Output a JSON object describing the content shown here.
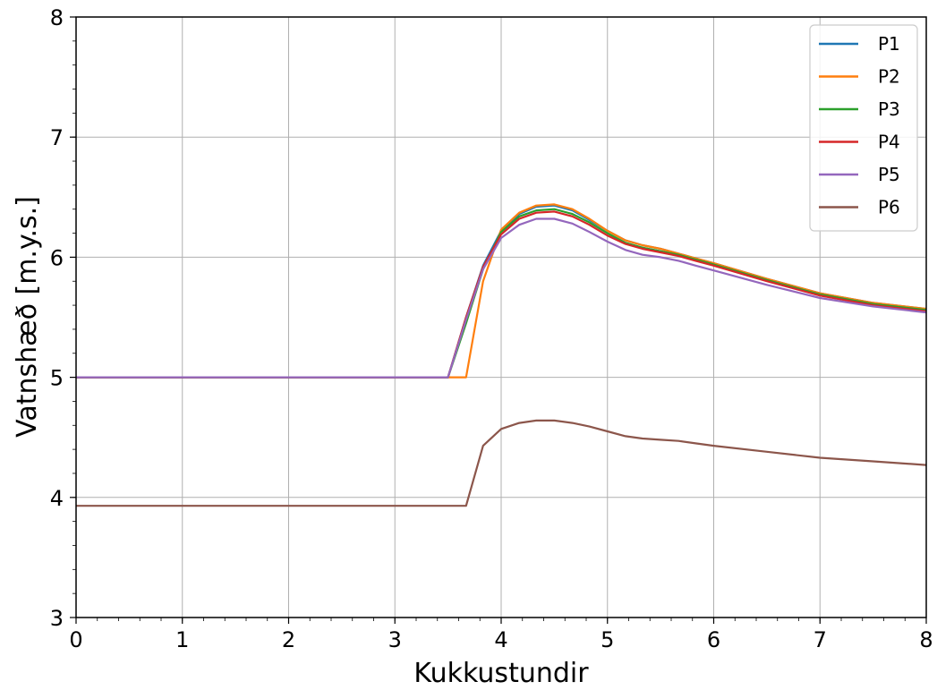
{
  "chart_data": {
    "type": "line",
    "title": "",
    "xlabel": "Kukkustundir",
    "ylabel": "Vatnshæð [m.y.s.]",
    "xlim": [
      0,
      8
    ],
    "ylim": [
      3,
      8
    ],
    "xticks": [
      0,
      1,
      2,
      3,
      4,
      5,
      6,
      7,
      8
    ],
    "yticks": [
      3,
      4,
      5,
      6,
      7,
      8
    ],
    "grid": true,
    "legend": "top-right",
    "series": [
      {
        "name": "P1",
        "color": "#1f77b4",
        "x": [
          0,
          3.5,
          3.67,
          3.83,
          4.0,
          4.17,
          4.33,
          4.5,
          4.67,
          4.83,
          5.0,
          5.17,
          5.33,
          5.5,
          5.67,
          5.83,
          6.0,
          6.5,
          7.0,
          7.5,
          8.0
        ],
        "y": [
          5.0,
          5.0,
          5.5,
          5.93,
          6.22,
          6.36,
          6.42,
          6.43,
          6.39,
          6.31,
          6.22,
          6.14,
          6.1,
          6.07,
          6.03,
          5.99,
          5.95,
          5.82,
          5.7,
          5.62,
          5.57
        ]
      },
      {
        "name": "P2",
        "color": "#ff7f0e",
        "x": [
          0,
          3.5,
          3.67,
          3.83,
          4.0,
          4.17,
          4.33,
          4.5,
          4.67,
          4.83,
          5.0,
          5.17,
          5.33,
          5.5,
          5.67,
          5.83,
          6.0,
          6.5,
          7.0,
          7.5,
          8.0
        ],
        "y": [
          5.0,
          5.0,
          5.0,
          5.8,
          6.23,
          6.37,
          6.43,
          6.44,
          6.4,
          6.32,
          6.22,
          6.14,
          6.1,
          6.07,
          6.03,
          5.99,
          5.95,
          5.82,
          5.7,
          5.62,
          5.57
        ]
      },
      {
        "name": "P3",
        "color": "#2ca02c",
        "x": [
          0,
          3.5,
          3.67,
          3.83,
          4.0,
          4.17,
          4.33,
          4.5,
          4.67,
          4.83,
          5.0,
          5.17,
          5.33,
          5.5,
          5.67,
          5.83,
          6.0,
          6.5,
          7.0,
          7.5,
          8.0
        ],
        "y": [
          5.0,
          5.0,
          5.45,
          5.9,
          6.21,
          6.34,
          6.39,
          6.4,
          6.36,
          6.29,
          6.2,
          6.12,
          6.08,
          6.05,
          6.02,
          5.98,
          5.94,
          5.81,
          5.69,
          5.61,
          5.56
        ]
      },
      {
        "name": "P4",
        "color": "#d62728",
        "x": [
          0,
          3.5,
          3.67,
          3.83,
          4.0,
          4.17,
          4.33,
          4.5,
          4.67,
          4.83,
          5.0,
          5.17,
          5.33,
          5.5,
          5.67,
          5.83,
          6.0,
          6.5,
          7.0,
          7.5,
          8.0
        ],
        "y": [
          5.0,
          5.0,
          5.5,
          5.92,
          6.19,
          6.32,
          6.37,
          6.38,
          6.34,
          6.27,
          6.18,
          6.11,
          6.07,
          6.04,
          6.01,
          5.97,
          5.93,
          5.8,
          5.68,
          5.6,
          5.55
        ]
      },
      {
        "name": "P5",
        "color": "#9467bd",
        "x": [
          0,
          3.5,
          3.67,
          3.83,
          4.0,
          4.17,
          4.33,
          4.5,
          4.67,
          4.83,
          5.0,
          5.17,
          5.33,
          5.5,
          5.67,
          5.83,
          6.0,
          6.5,
          7.0,
          7.5,
          8.0
        ],
        "y": [
          5.0,
          5.0,
          5.48,
          5.9,
          6.16,
          6.27,
          6.32,
          6.32,
          6.28,
          6.21,
          6.13,
          6.06,
          6.02,
          6.0,
          5.97,
          5.93,
          5.89,
          5.77,
          5.66,
          5.59,
          5.54
        ]
      },
      {
        "name": "P6",
        "color": "#8c564b",
        "x": [
          0,
          3.5,
          3.67,
          3.83,
          4.0,
          4.17,
          4.33,
          4.5,
          4.67,
          4.83,
          5.0,
          5.17,
          5.33,
          5.5,
          5.67,
          5.83,
          6.0,
          6.5,
          7.0,
          7.5,
          8.0
        ],
        "y": [
          3.93,
          3.93,
          3.93,
          4.43,
          4.57,
          4.62,
          4.64,
          4.64,
          4.62,
          4.59,
          4.55,
          4.51,
          4.49,
          4.48,
          4.47,
          4.45,
          4.43,
          4.38,
          4.33,
          4.3,
          4.27
        ]
      }
    ]
  }
}
